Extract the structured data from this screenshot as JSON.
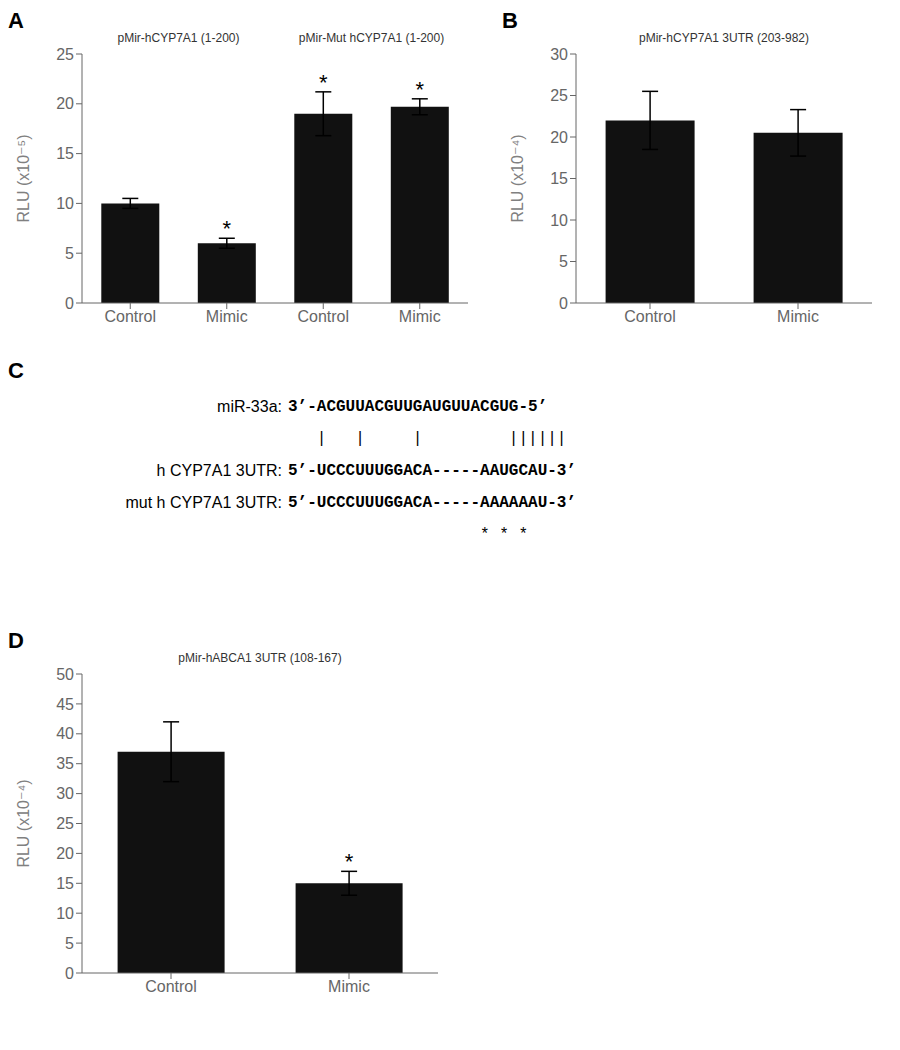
{
  "chart_data": [
    {
      "type": "bar",
      "title": "A",
      "categories": [
        "Control",
        "Mimic",
        "Control",
        "Mimic"
      ],
      "values": [
        10.0,
        6.0,
        19.0,
        19.7
      ],
      "errors": [
        0.5,
        0.5,
        2.2,
        0.8
      ],
      "ylabel": "RLU (x10⁻⁵)",
      "ylim": [
        0,
        25
      ],
      "yticks": [
        0,
        5,
        10,
        15,
        20,
        25
      ],
      "color": "#111111",
      "groups": [
        {
          "title": "pMir-hCYP7A1 (1-200)",
          "bars": [
            0,
            1
          ]
        },
        {
          "title": "pMir-Mut hCYP7A1 (1-200)",
          "bars": [
            2,
            3
          ]
        }
      ],
      "annotations": [
        {
          "text": "*",
          "bar": 1
        },
        {
          "text": "*",
          "bar": 2
        },
        {
          "text": "*",
          "bar": 3
        }
      ]
    },
    {
      "type": "bar",
      "title": "B",
      "categories": [
        "Control",
        "Mimic"
      ],
      "values": [
        22.0,
        20.5
      ],
      "errors": [
        3.5,
        2.8
      ],
      "ylabel": "RLU (x10⁻⁴)",
      "ylim": [
        0,
        30
      ],
      "yticks": [
        0,
        5,
        10,
        15,
        20,
        25,
        30
      ],
      "color": "#111111",
      "groups": [
        {
          "title": "pMir-hCYP7A1 3UTR (203-982)",
          "bars": [
            0,
            1
          ]
        }
      ],
      "annotations": []
    },
    {
      "type": "text",
      "title": "C",
      "lines": [
        {
          "label": "miR-33a:",
          "sequence": "3’-ACGUUACGUUGAUGUUACGUG-5’"
        },
        {
          "sequence": "   |   |     |         ||||||"
        },
        {
          "label": "h CYP7A1 3UTR:",
          "sequence": "5’-UCCCUUUGGACA-----AAUGCAU-3’"
        },
        {
          "label": "mut h CYP7A1 3UTR:",
          "sequence": "5’-UCCCUUUGGACA-----AAAAAAU-3’"
        },
        {
          "sequence": "                    * * *"
        }
      ]
    },
    {
      "type": "bar",
      "title": "D",
      "categories": [
        "Control",
        "Mimic"
      ],
      "values": [
        37.0,
        15.0
      ],
      "errors": [
        5.0,
        2.0
      ],
      "ylabel": "RLU (x10⁻⁴)",
      "ylim": [
        0,
        50
      ],
      "yticks": [
        0,
        5,
        10,
        15,
        20,
        25,
        30,
        35,
        40,
        45,
        50
      ],
      "color": "#111111",
      "groups": [
        {
          "title": "pMir-hABCA1 3UTR (108-167)",
          "bars": [
            0,
            1
          ]
        }
      ],
      "annotations": [
        {
          "text": "*",
          "bar": 1
        }
      ]
    }
  ]
}
